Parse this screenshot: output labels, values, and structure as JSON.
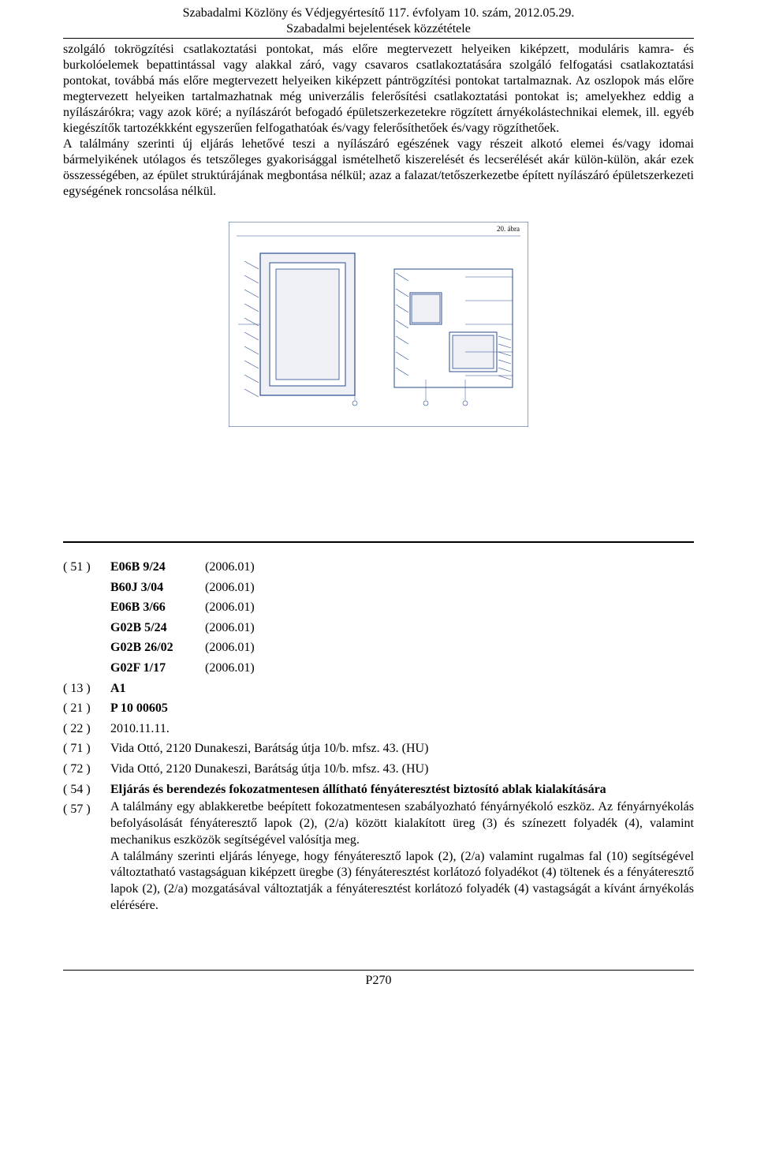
{
  "header": {
    "line1": "Szabadalmi Közlöny és Védjegyértesítő 117. évfolyam 10. szám, 2012.05.29.",
    "line2": "Szabadalmi bejelentések közzététele"
  },
  "body": {
    "p1": "szolgáló tokrögzítési csatlakoztatási pontokat, más előre megtervezett helyeiken kiképzett, moduláris kamra- és burkolóelemek bepattintással vagy alakkal záró, vagy csavaros csatlakoztatására szolgáló felfogatási csatlakoztatási pontokat, továbbá más előre megtervezett helyeiken kiképzett pántrögzítési pontokat tartalmaznak. Az oszlopok más előre megtervezett helyeiken tartalmazhatnak még univerzális felerősítési csatlakoztatási pontokat is; amelyekhez eddig a nyílászárókra; vagy azok köré; a nyílászárót befogadó épületszerkezetekre rögzített árnyékolástechnikai elemek, ill. egyéb kiegészítők tartozékkként egyszerűen felfogathatóak és/vagy felerősíthetőek és/vagy rögzíthetőek.",
    "p2": "A találmány szerinti új eljárás lehetővé teszi a nyílászáró egészének vagy részeit alkotó elemei és/vagy idomai bármelyikének utólagos és tetszőleges gyakorisággal ismételhető kiszerelését és lecserélését akár külön-külön, akár ezek összességében, az épület struktúrájának megbontása nélkül; azaz a falazat/tetőszerkezetbe épített nyílászáró épületszerkezeti egységének roncsolása nélkül."
  },
  "figure": {
    "caption_top": "20. ábra",
    "stroke": "#2b4b8f",
    "bg": "#eef0f5"
  },
  "classifications": {
    "field": "( 51 )",
    "rows": [
      {
        "cls": "E06B 9/24",
        "ver": "(2006.01)"
      },
      {
        "cls": "B60J 3/04",
        "ver": "(2006.01)"
      },
      {
        "cls": "E06B 3/66",
        "ver": "(2006.01)"
      },
      {
        "cls": "G02B 5/24",
        "ver": "(2006.01)"
      },
      {
        "cls": "G02B 26/02",
        "ver": "(2006.01)"
      },
      {
        "cls": "G02F 1/17",
        "ver": "(2006.01)"
      }
    ]
  },
  "fields": {
    "f13": {
      "code": "( 13 )",
      "value": "A1"
    },
    "f21": {
      "code": "( 21 )",
      "value": "P 10 00605"
    },
    "f22": {
      "code": "( 22 )",
      "value": "2010.11.11."
    },
    "f71": {
      "code": "( 71 )",
      "value": "Vida Ottó, 2120 Dunakeszi, Barátság útja 10/b. mfsz. 43. (HU)"
    },
    "f72": {
      "code": "( 72 )",
      "value": "Vida Ottó, 2120 Dunakeszi, Barátság útja 10/b. mfsz. 43. (HU)"
    },
    "f54": {
      "code": "( 54 )",
      "value": "Eljárás és berendezés fokozatmentesen állítható fényáteresztést biztosító ablak kialakítására"
    },
    "f57": {
      "code": "( 57 )"
    }
  },
  "abstract": {
    "p1": "A találmány egy ablakkeretbe beépített fokozatmentesen szabályozható fényárnyékoló eszköz. Az fényárnyékolás befolyásolását fényáteresztő lapok (2), (2/a) között kialakított üreg (3) és színezett folyadék (4), valamint mechanikus eszközök segítségével valósítja meg.",
    "p2": "A találmány szerinti eljárás lényege, hogy fényáteresztő lapok (2), (2/a) valamint rugalmas fal (10) segítségével változtatható vastagságuan kiképzett üregbe (3) fényáteresztést korlátozó folyadékot (4) töltenek és a fényáteresztő lapok (2), (2/a) mozgatásával változtatják a fényáteresztést korlátozó folyadék (4) vastagságát a kívánt árnyékolás elérésére."
  },
  "footer": "P270"
}
